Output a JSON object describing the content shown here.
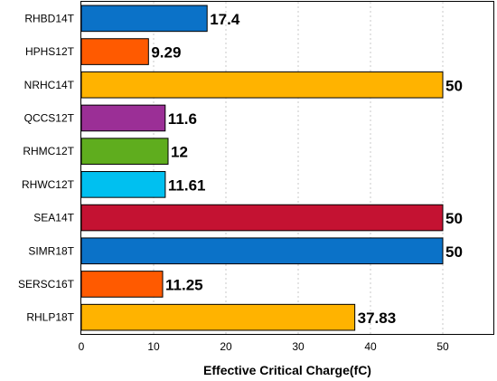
{
  "chart_data": {
    "type": "bar",
    "orientation": "horizontal",
    "categories": [
      "RHBD14T",
      "HPHS12T",
      "NRHC14T",
      "QCCS12T",
      "RHMC12T",
      "RHWC12T",
      "SEA14T",
      "SIMR18T",
      "SERSC16T",
      "RHLP18T"
    ],
    "values": [
      17.4,
      9.29,
      50,
      11.6,
      12,
      11.61,
      50,
      50,
      11.25,
      37.83
    ],
    "value_labels": [
      "17.4",
      "9.29",
      "50",
      "11.6",
      "12",
      "11.61",
      "50",
      "50",
      "11.25",
      "37.83"
    ],
    "colors": [
      "#0b72c8",
      "#ff5a00",
      "#ffb300",
      "#9b2f96",
      "#5fad1e",
      "#00c0f0",
      "#c41232",
      "#0b72c8",
      "#ff5a00",
      "#ffb300"
    ],
    "xlabel": "Effective Critical Charge(fC)",
    "ylabel": "",
    "xlim": [
      0,
      57
    ],
    "xticks": [
      0,
      10,
      20,
      30,
      40,
      50
    ],
    "grid": true
  }
}
